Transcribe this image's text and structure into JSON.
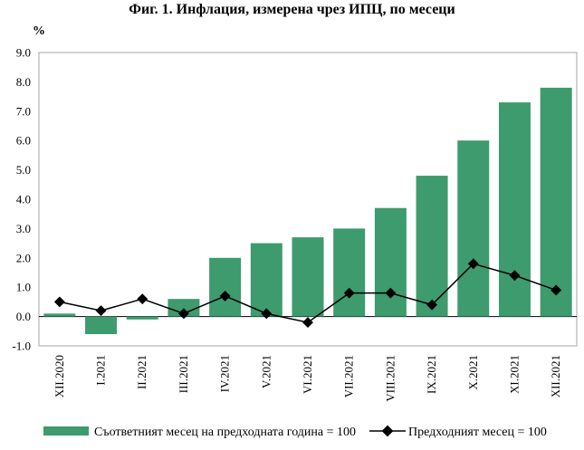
{
  "chart_data": {
    "type": "bar",
    "title": "Фиг. 1. Инфлация, измерена чрез ИПЦ, по месеци",
    "ylabel": "%",
    "xlabel": "",
    "ylim": [
      -1.0,
      9.0
    ],
    "y_ticks": [
      "9.0",
      "8.0",
      "7.0",
      "6.0",
      "5.0",
      "4.0",
      "3.0",
      "2.0",
      "1.0",
      "0.0",
      "-1.0"
    ],
    "categories": [
      "XII.2020",
      "I.2021",
      "II.2021",
      "III.2021",
      "IV.2021",
      "V.2021",
      "VI.2021",
      "VII.2021",
      "VIII.2021",
      "IX.2021",
      "X.2021",
      "XI.2021",
      "XII.2021"
    ],
    "series": [
      {
        "name": "Съответният месец на предходната година = 100",
        "kind": "bar",
        "color": "#3d9b6e",
        "values": [
          0.1,
          -0.6,
          -0.1,
          0.6,
          2.0,
          2.5,
          2.7,
          3.0,
          3.7,
          4.8,
          6.0,
          7.3,
          7.8
        ]
      },
      {
        "name": "Предходният месец = 100",
        "kind": "line",
        "color": "#000000",
        "values": [
          0.5,
          0.2,
          0.6,
          0.1,
          0.7,
          0.1,
          -0.2,
          0.8,
          0.8,
          0.4,
          1.8,
          1.4,
          0.9
        ]
      }
    ],
    "grid": false,
    "legend": "bottom"
  }
}
